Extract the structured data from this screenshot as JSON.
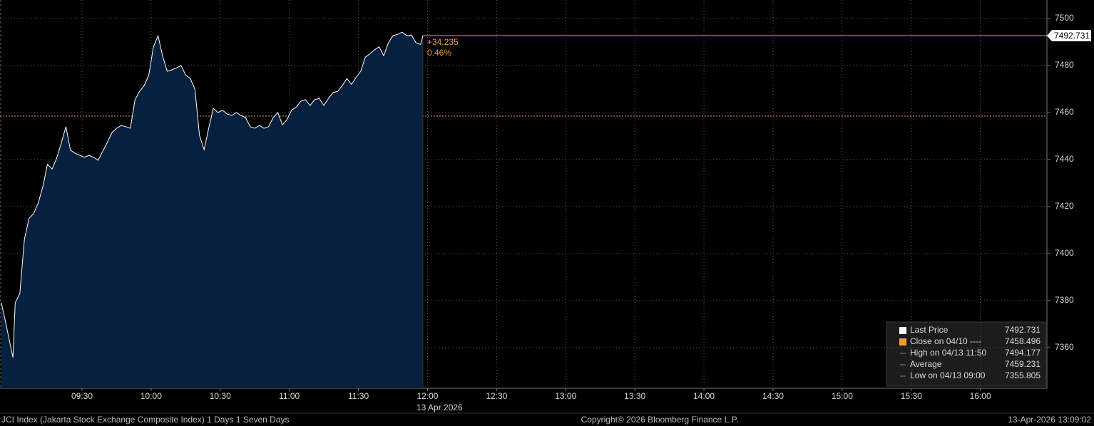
{
  "chart_data": {
    "type": "area",
    "x": [
      535,
      537,
      540,
      541,
      543,
      545,
      547,
      549,
      551,
      553,
      555,
      557,
      559,
      561,
      563,
      565,
      567,
      569,
      571,
      573,
      575,
      577,
      579,
      581,
      583,
      585,
      587,
      589,
      591,
      593,
      595,
      597,
      599,
      601,
      603,
      605,
      607,
      609,
      611,
      613,
      615,
      617,
      619,
      621,
      623,
      625,
      627,
      629,
      631,
      633,
      635,
      637,
      639,
      641,
      643,
      645,
      647,
      649,
      651,
      653,
      655,
      657,
      659,
      661,
      663,
      665,
      667,
      669,
      671,
      673,
      675,
      677,
      679,
      681,
      683,
      685,
      687,
      689,
      691,
      693,
      695,
      697,
      699,
      701,
      703,
      705,
      707,
      709,
      711,
      713,
      715,
      717,
      718
    ],
    "series": [
      {
        "name": "Last Price",
        "color": "#ffffff",
        "fill": "#06203d",
        "values": [
          7379,
          7370,
          7355.8,
          7379,
          7383,
          7406,
          7415,
          7417,
          7421.5,
          7428.5,
          7438,
          7436,
          7440.6,
          7447,
          7454,
          7444,
          7442.7,
          7441.8,
          7441,
          7441.8,
          7441,
          7439.7,
          7443.6,
          7447.3,
          7451.5,
          7453.3,
          7454.5,
          7454,
          7453.3,
          7465.5,
          7469,
          7471.5,
          7476,
          7488,
          7492.7,
          7484,
          7477.6,
          7478.2,
          7479,
          7480,
          7476,
          7474.5,
          7470,
          7450.3,
          7444.2,
          7453.3,
          7461.8,
          7460,
          7461,
          7459.4,
          7458.8,
          7460,
          7458.8,
          7457.9,
          7454,
          7453.3,
          7454.5,
          7453.3,
          7454,
          7457.9,
          7460,
          7454.8,
          7457,
          7461,
          7462.4,
          7464.8,
          7465.5,
          7463,
          7465.5,
          7466,
          7463,
          7466,
          7468.5,
          7469,
          7471.5,
          7474.5,
          7472,
          7475,
          7477.6,
          7483.6,
          7485,
          7486.7,
          7488,
          7484.2,
          7489.7,
          7492.7,
          7493.3,
          7494.2,
          7492.7,
          7493,
          7489.7,
          7489,
          7492.7
        ]
      }
    ],
    "xlim": [
      534.4,
      988.9
    ],
    "xticks": [
      {
        "value": 570,
        "label": "09:30"
      },
      {
        "value": 600,
        "label": "10:00"
      },
      {
        "value": 630,
        "label": "10:30"
      },
      {
        "value": 660,
        "label": "11:00"
      },
      {
        "value": 690,
        "label": "11:30"
      },
      {
        "value": 720,
        "label": "12:00"
      },
      {
        "value": 750,
        "label": "12:30"
      },
      {
        "value": 780,
        "label": "13:00"
      },
      {
        "value": 810,
        "label": "13:30"
      },
      {
        "value": 840,
        "label": "14:00"
      },
      {
        "value": 870,
        "label": "14:30"
      },
      {
        "value": 900,
        "label": "15:00"
      },
      {
        "value": 930,
        "label": "15:30"
      },
      {
        "value": 960,
        "label": "16:00"
      }
    ],
    "xlabel": "13 Apr 2026",
    "ylim": [
      7342.7,
      7507.9
    ],
    "yticks": [
      7360,
      7380,
      7400,
      7420,
      7440,
      7460,
      7480,
      7500
    ],
    "grid": true,
    "annotations": [
      "+34.235",
      "0.46%"
    ],
    "legend": [
      {
        "label": "Last Price",
        "value": 7492.731,
        "color": "#ffffff"
      },
      {
        "label": "Close on 04/10 ----",
        "value": 7458.496,
        "color": "#f39c34"
      },
      {
        "label": "High on 04/13 11:50",
        "value": 7494.177
      },
      {
        "label": "Average",
        "value": 7459.231
      },
      {
        "label": "Low on 04/13 09:00",
        "value": 7355.805
      }
    ],
    "footer": [
      "JCI Index (Jakarta Stock Exchange Composite Index) 1 Days 1 Seven Days",
      "Copyright© 2026 Bloomberg Finance L.P.",
      "13-Apr-2026 13:09:02"
    ]
  }
}
